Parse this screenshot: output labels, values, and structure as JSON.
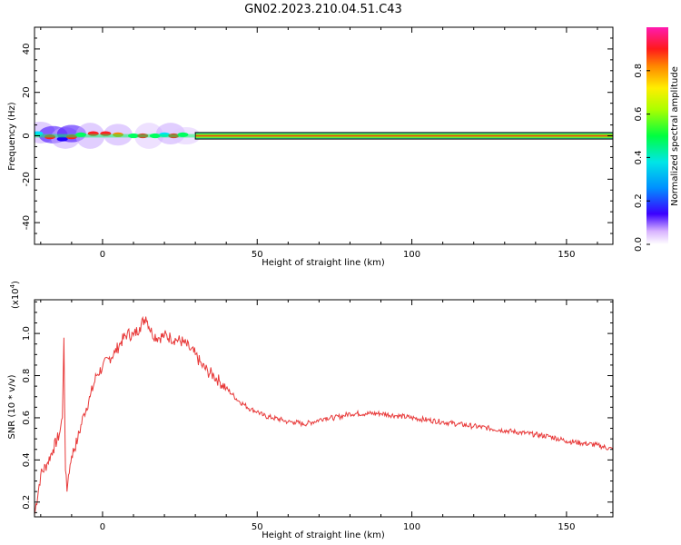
{
  "title": "GN02.2023.210.04.51.C43",
  "colors": {
    "snr_line": "#e83a3a",
    "axis": "#000000"
  },
  "chart_data": [
    {
      "type": "heatmap",
      "title": "GN02.2023.210.04.51.C43",
      "xlabel": "Height of straight line (km)",
      "ylabel": "Frequency (Hz)",
      "xlim": [
        -22,
        165
      ],
      "ylim": [
        -50,
        50
      ],
      "x_ticks": [
        0,
        50,
        100,
        150
      ],
      "y_ticks": [
        40,
        20,
        0,
        -20,
        -40
      ],
      "colorbar": {
        "label": "Normalized spectral amplitude",
        "range": [
          0,
          1
        ],
        "ticks": [
          "0.0",
          "0.2",
          "0.4",
          "0.6",
          "0.8"
        ],
        "colormap": "rainbow (magenta at 1.0 to white at 0.0)"
      },
      "description_values": {
        "band_center_hz": 0,
        "band_halfwidth_hz": 1.5,
        "peak_start_km": 30,
        "peak_end_km": 165
      }
    },
    {
      "type": "line",
      "xlabel": "Height of straight line (km)",
      "ylabel": "SNR (10 * v/v)",
      "y_multiplier": "(x10⁴)",
      "xlim": [
        -22,
        165
      ],
      "ylim": [
        0.13,
        1.16
      ],
      "x_ticks": [
        0,
        50,
        100,
        150
      ],
      "y_ticks": [
        "0.2",
        "0.4",
        "0.6",
        "0.8",
        "1.0"
      ],
      "series": [
        {
          "color": "#e83a3a",
          "x": [
            -22,
            -20,
            -18,
            -16,
            -14,
            -13,
            -12.5,
            -12,
            -11.5,
            -11,
            -10,
            -8,
            -6,
            -4,
            -2,
            0,
            2,
            4,
            6,
            8,
            10,
            12,
            14,
            16,
            18,
            20,
            22,
            24,
            26,
            28,
            30,
            32,
            34,
            36,
            38,
            40,
            42,
            44,
            46,
            48,
            50,
            52,
            55,
            58,
            60,
            62,
            65,
            68,
            70,
            72,
            75,
            78,
            80,
            85,
            90,
            95,
            100,
            105,
            110,
            115,
            120,
            125,
            130,
            135,
            140,
            145,
            150,
            155,
            160,
            165
          ],
          "y": [
            0.14,
            0.33,
            0.38,
            0.45,
            0.52,
            0.6,
            0.98,
            0.35,
            0.25,
            0.33,
            0.42,
            0.5,
            0.62,
            0.7,
            0.8,
            0.84,
            0.88,
            0.91,
            0.96,
            1.0,
            0.99,
            1.03,
            1.08,
            1.0,
            0.98,
            0.99,
            0.98,
            0.97,
            0.96,
            0.93,
            0.9,
            0.85,
            0.82,
            0.8,
            0.77,
            0.74,
            0.71,
            0.68,
            0.66,
            0.64,
            0.63,
            0.61,
            0.6,
            0.59,
            0.58,
            0.58,
            0.57,
            0.58,
            0.59,
            0.6,
            0.6,
            0.61,
            0.62,
            0.62,
            0.62,
            0.61,
            0.6,
            0.59,
            0.58,
            0.57,
            0.56,
            0.55,
            0.54,
            0.53,
            0.52,
            0.51,
            0.49,
            0.48,
            0.47,
            0.45
          ]
        }
      ]
    }
  ],
  "labels": {
    "top_xlabel": "Height of straight line (km)",
    "top_ylabel": "Frequency (Hz)",
    "bottom_xlabel": "Height of straight line (km)",
    "bottom_ylabel": "SNR (10 * v/v)",
    "multiplier": "(x10",
    "multiplier_exp": "4",
    "multiplier_close": ")",
    "colorbar_label": "Normalized spectral amplitude"
  }
}
